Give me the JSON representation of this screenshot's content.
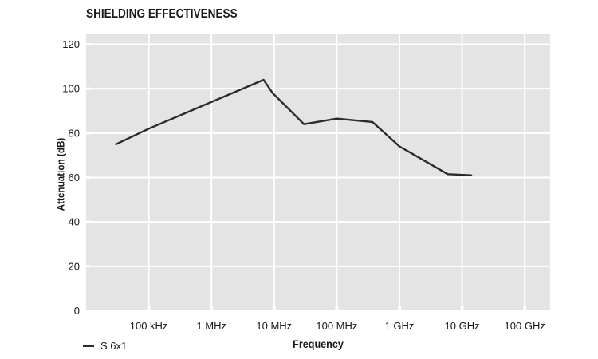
{
  "title": "SHIELDING EFFECTIVENESS",
  "legend": {
    "series_label": "S 6x1"
  },
  "chart_data": {
    "type": "line",
    "title": "SHIELDING EFFECTIVENESS",
    "xlabel": "Frequency",
    "ylabel": "Attenuation (dB)",
    "x_scale": "log",
    "xlim_hz": [
      10000,
      250000000000
    ],
    "ylim": [
      0,
      125
    ],
    "y_ticks": [
      0,
      20,
      40,
      60,
      80,
      100,
      120
    ],
    "x_ticks": [
      {
        "freq_hz": 100000,
        "label": "100 kHz"
      },
      {
        "freq_hz": 1000000,
        "label": "1 MHz"
      },
      {
        "freq_hz": 10000000,
        "label": "10 MHz"
      },
      {
        "freq_hz": 100000000,
        "label": "100 MHz"
      },
      {
        "freq_hz": 1000000000,
        "label": "1 GHz"
      },
      {
        "freq_hz": 10000000000,
        "label": "10 GHz"
      },
      {
        "freq_hz": 100000000000,
        "label": "100 GHz"
      }
    ],
    "grid": "on",
    "legend_position": "bottom-left",
    "series": [
      {
        "name": "S 6x1",
        "points": [
          {
            "freq_hz": 30000,
            "attenuation_db": 75
          },
          {
            "freq_hz": 100000,
            "attenuation_db": 82
          },
          {
            "freq_hz": 6800000,
            "attenuation_db": 104
          },
          {
            "freq_hz": 9500000,
            "attenuation_db": 98
          },
          {
            "freq_hz": 30000000,
            "attenuation_db": 84
          },
          {
            "freq_hz": 100000000,
            "attenuation_db": 86.5
          },
          {
            "freq_hz": 370000000,
            "attenuation_db": 85
          },
          {
            "freq_hz": 1000000000,
            "attenuation_db": 74
          },
          {
            "freq_hz": 5900000000,
            "attenuation_db": 61.5
          },
          {
            "freq_hz": 14000000000,
            "attenuation_db": 61
          }
        ]
      }
    ],
    "colors": {
      "line": "#2b2b2b",
      "plot_background": "#e4e4e4",
      "gridline": "#ffffff",
      "text": "#1a1a1a",
      "page_background": "#ffffff"
    }
  }
}
